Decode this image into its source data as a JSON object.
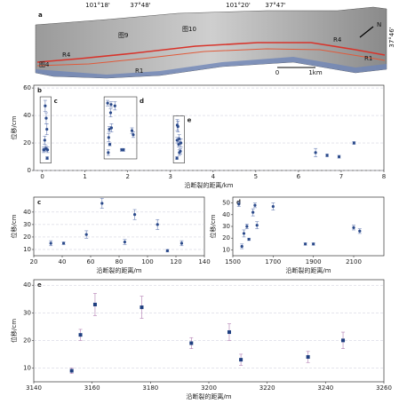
{
  "map_panel": {
    "panel_label": "a",
    "coords_top": [
      "101°18'",
      "37°48'",
      "101°20'",
      "37°47'"
    ],
    "coord_right": "37°46'",
    "labels": [
      "图9",
      "图10",
      "R4",
      "图4",
      "R1",
      "R4",
      "R1"
    ],
    "scale": [
      "0",
      "1km"
    ],
    "north": "N"
  },
  "chart_data": [
    {
      "type": "scatter",
      "panel_label": "b",
      "xlabel": "沿断裂的距离/km",
      "ylabel": "位移/cm",
      "xlim": [
        -0.2,
        8
      ],
      "ylim": [
        0,
        62
      ],
      "xticks": [
        0,
        1,
        2,
        3,
        4,
        5,
        6,
        7,
        8
      ],
      "yticks": [
        0,
        20,
        40,
        60
      ],
      "grid": true,
      "marker": "circle",
      "series": [
        {
          "box_label": "c",
          "color": "#2b4a8a",
          "error_color": "#6a7fb5",
          "x": [
            0.032,
            0.041,
            0.057,
            0.068,
            0.084,
            0.091,
            0.107,
            0.114,
            0.124
          ],
          "values": [
            15,
            15,
            22,
            47,
            16,
            38,
            30,
            9,
            15
          ],
          "errors": [
            2,
            1,
            3,
            4,
            2,
            4,
            4,
            1,
            2
          ]
        },
        {
          "box_label": "d",
          "color": "#2b4a8a",
          "error_color": "#6a7fb5",
          "x": [
            1.53,
            1.545,
            1.555,
            1.57,
            1.58,
            1.6,
            1.61,
            1.62,
            1.7,
            1.86,
            1.9,
            2.1,
            2.13
          ],
          "values": [
            49,
            13,
            24,
            30,
            19,
            42,
            48,
            31,
            47,
            15,
            15,
            29,
            26
          ],
          "errors": [
            2,
            2,
            3,
            2,
            1,
            3,
            2,
            3,
            3,
            1,
            1,
            2,
            2
          ]
        },
        {
          "box_label": "e",
          "color": "#2b4a8a",
          "error_color": "#6a7fb5",
          "x": [
            3.153,
            3.156,
            3.161,
            3.177,
            3.194,
            3.207,
            3.211,
            3.234,
            3.246
          ],
          "values": [
            9,
            22,
            33,
            32,
            19,
            23,
            13,
            14,
            20
          ],
          "errors": [
            1,
            2,
            4,
            4,
            2,
            3,
            2,
            2,
            3
          ]
        },
        {
          "color": "#2b4a8a",
          "error_color": "#6a7fb5",
          "x": [
            6.4,
            6.67,
            6.95,
            7.3
          ],
          "values": [
            13,
            11,
            10,
            20
          ],
          "errors": [
            3,
            1,
            1,
            1
          ]
        }
      ]
    },
    {
      "type": "scatter",
      "panel_label": "c",
      "xlabel": "沿断裂的距离/m",
      "ylabel": "位移/cm",
      "xlim": [
        20,
        140
      ],
      "ylim": [
        5,
        52
      ],
      "xticks": [
        20,
        40,
        60,
        80,
        100,
        120,
        140
      ],
      "yticks": [
        10,
        20,
        30,
        40
      ],
      "grid": true,
      "marker": "circle",
      "series": [
        {
          "color": "#2b4a8a",
          "error_color": "#6a7fb5",
          "x": [
            32,
            41,
            57,
            68,
            84,
            91,
            107,
            114,
            124
          ],
          "values": [
            15,
            15,
            22,
            47,
            16,
            38,
            30,
            9,
            15
          ],
          "errors": [
            2,
            1,
            3,
            4,
            2,
            4,
            4,
            1,
            2
          ]
        }
      ]
    },
    {
      "type": "scatter",
      "panel_label": "d",
      "xlabel": "沿断裂的距离/m",
      "ylabel": "位移/cm",
      "xlim": [
        1500,
        2250
      ],
      "ylim": [
        5,
        55
      ],
      "xticks": [
        1500,
        1700,
        1900,
        2100
      ],
      "yticks": [
        10,
        20,
        30,
        40,
        50
      ],
      "grid": false,
      "marker": "circle",
      "series": [
        {
          "color": "#2b4a8a",
          "error_color": "#6a7fb5",
          "x": [
            1530,
            1545,
            1555,
            1570,
            1580,
            1600,
            1610,
            1620,
            1700,
            1860,
            1900,
            2100,
            2130
          ],
          "values": [
            49,
            13,
            24,
            30,
            19,
            42,
            48,
            31,
            47,
            15,
            15,
            29,
            26
          ],
          "errors": [
            2,
            2,
            3,
            2,
            1,
            3,
            2,
            3,
            3,
            1,
            1,
            2,
            2
          ]
        }
      ]
    },
    {
      "type": "scatter",
      "panel_label": "e",
      "xlabel": "沿断裂的距离/m",
      "ylabel": "位移/cm",
      "xlim": [
        3140,
        3260
      ],
      "ylim": [
        5,
        42
      ],
      "xticks": [
        3140,
        3160,
        3180,
        3200,
        3220,
        3240,
        3260
      ],
      "yticks": [
        10,
        20,
        30,
        40
      ],
      "grid": true,
      "marker": "square",
      "series": [
        {
          "color": "#1f3f80",
          "error_color": "#b07ab0",
          "x": [
            3153,
            3156,
            3161,
            3177,
            3194,
            3207,
            3211,
            3234,
            3246
          ],
          "values": [
            9,
            22,
            33,
            32,
            19,
            23,
            13,
            14,
            20
          ],
          "errors": [
            1,
            2,
            4,
            4,
            2,
            3,
            2,
            2,
            3
          ]
        }
      ]
    }
  ]
}
